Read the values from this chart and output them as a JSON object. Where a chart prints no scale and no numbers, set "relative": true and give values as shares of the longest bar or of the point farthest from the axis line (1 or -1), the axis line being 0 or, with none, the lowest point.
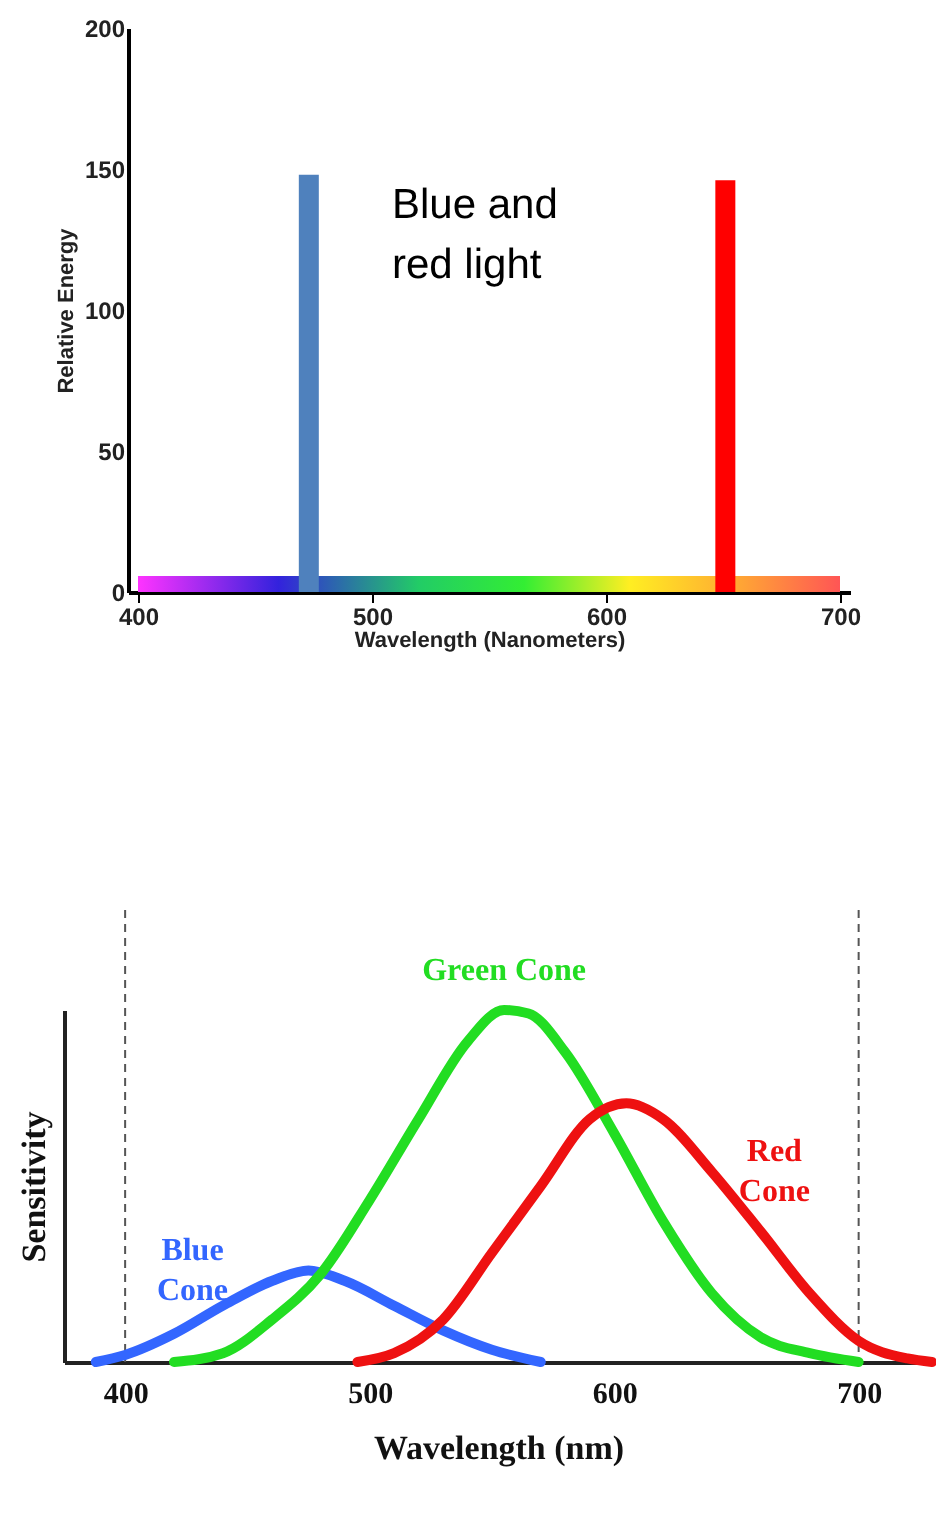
{
  "chart_data": [
    {
      "type": "bar",
      "xlabel": "Wavelength (Nanometers)",
      "ylabel": "Relative Energy",
      "annotations": [
        "Blue and red light"
      ],
      "x": [
        473,
        651
      ],
      "values": [
        148,
        146
      ],
      "colors": [
        "#4f81bd",
        "#ff0000"
      ],
      "xlim": [
        400,
        700
      ],
      "xticks": [
        400,
        500,
        600,
        700
      ],
      "ylim": [
        0,
        200
      ],
      "yticks": [
        0,
        50,
        100,
        150,
        200
      ],
      "grid": false,
      "legend": false
    },
    {
      "type": "line",
      "xlabel": "Wavelength (nm)",
      "ylabel": "Sensitivity",
      "relative": true,
      "xlim": [
        375,
        730
      ],
      "xticks": [
        400,
        500,
        600,
        700
      ],
      "grid": false,
      "legend": false,
      "series": [
        {
          "name": "Blue Cone",
          "color": "#3366ff",
          "x": [
            388,
            400,
            420,
            440,
            460,
            475,
            490,
            510,
            530,
            550,
            570
          ],
          "values": [
            0,
            0.02,
            0.08,
            0.16,
            0.23,
            0.26,
            0.23,
            0.16,
            0.09,
            0.035,
            0
          ]
        },
        {
          "name": "Green Cone",
          "color": "#22dd22",
          "x": [
            420,
            440,
            460,
            480,
            500,
            520,
            540,
            555,
            565,
            580,
            600,
            620,
            640,
            660,
            680,
            700
          ],
          "values": [
            0,
            0.025,
            0.12,
            0.25,
            0.46,
            0.69,
            0.91,
            1.0,
            0.99,
            0.88,
            0.65,
            0.4,
            0.195,
            0.07,
            0.025,
            0
          ]
        },
        {
          "name": "Red Cone",
          "color": "#ee1111",
          "x": [
            495,
            510,
            530,
            550,
            570,
            590,
            605,
            620,
            640,
            660,
            680,
            700,
            720,
            730
          ],
          "values": [
            0,
            0.025,
            0.12,
            0.31,
            0.5,
            0.69,
            0.735,
            0.69,
            0.54,
            0.37,
            0.195,
            0.06,
            0.01,
            0
          ]
        }
      ],
      "ref_lines": [
        {
          "axis": "x",
          "value": 400,
          "label": null,
          "line_style": "dashed",
          "color": "#555555"
        },
        {
          "axis": "x",
          "value": 700,
          "label": null,
          "line_style": "dashed",
          "color": "#555555"
        }
      ]
    }
  ]
}
